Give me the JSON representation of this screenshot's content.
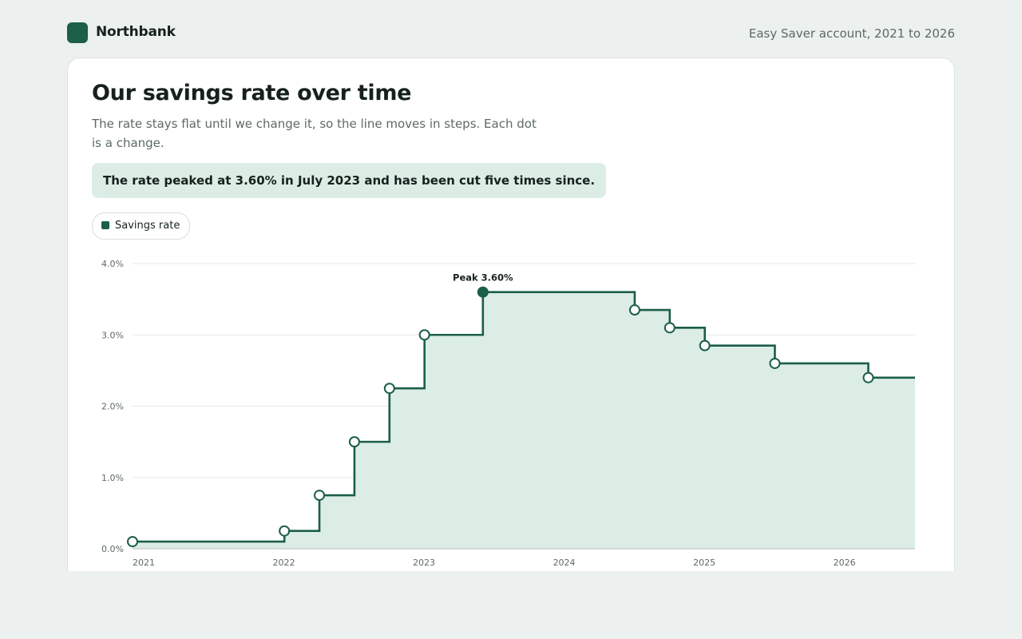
{
  "brand": {
    "name": "Northbank",
    "account_caption": "Easy Saver account, 2021 to 2026"
  },
  "colors": {
    "brand": "#1b5e49",
    "line": "#1b5e49",
    "fill": "#dcede6",
    "grid": "#e4e8e6",
    "callout_bg": "#dcede6"
  },
  "legend": {
    "label": "Savings rate"
  },
  "chart_data": {
    "type": "line",
    "step": true,
    "title": "Our savings rate over time",
    "subtitle": "The rate stays flat until we change it, so the line moves in steps. Each dot is a change.",
    "callout": "The rate peaked at 3.60% in July 2023 and has been cut five times since.",
    "x_ticks": [
      "2021",
      "2022",
      "2023",
      "2024",
      "2025",
      "2026"
    ],
    "y_ticks": [
      "0.0%",
      "1.0%",
      "2.0%",
      "3.0%",
      "4.0%"
    ],
    "xlim": [
      "2021-01",
      "2026-08"
    ],
    "ylim": [
      0,
      4
    ],
    "grid": true,
    "legend_position": "top-left",
    "series": [
      {
        "name": "Savings rate",
        "points": [
          {
            "date": "2021-01",
            "rate": 0.1
          },
          {
            "date": "2022-02",
            "rate": 0.25
          },
          {
            "date": "2022-05",
            "rate": 0.75
          },
          {
            "date": "2022-08",
            "rate": 1.5
          },
          {
            "date": "2022-11",
            "rate": 2.25
          },
          {
            "date": "2023-02",
            "rate": 3.0
          },
          {
            "date": "2023-07",
            "rate": 3.6
          },
          {
            "date": "2024-08",
            "rate": 3.35
          },
          {
            "date": "2024-11",
            "rate": 3.1
          },
          {
            "date": "2025-02",
            "rate": 2.85
          },
          {
            "date": "2025-08",
            "rate": 2.6
          },
          {
            "date": "2026-04",
            "rate": 2.4
          }
        ],
        "continues_to": "2026-08"
      }
    ],
    "annotations": [
      {
        "date": "2023-07",
        "rate": 3.6,
        "label": "Peak 3.60%",
        "highlight": true
      }
    ]
  }
}
